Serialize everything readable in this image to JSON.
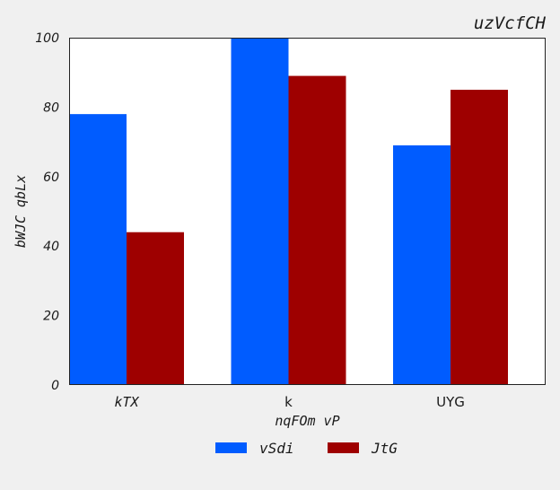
{
  "chart_data": {
    "type": "bar",
    "title": "uzVcfCH",
    "xlabel": "nqFOm vP",
    "ylabel": "bWJC qbLx",
    "categories": [
      "kTX",
      "k",
      "UYG"
    ],
    "series": [
      {
        "name": "vSdi",
        "values": [
          78,
          100,
          69
        ],
        "color": "#005cff"
      },
      {
        "name": "JtG",
        "values": [
          44,
          89,
          85
        ],
        "color": "#9e0000"
      }
    ],
    "ylim": [
      0,
      100
    ],
    "yticks": [
      0,
      20,
      40,
      60,
      80,
      100
    ],
    "grid": false,
    "legend_position": "bottom"
  }
}
